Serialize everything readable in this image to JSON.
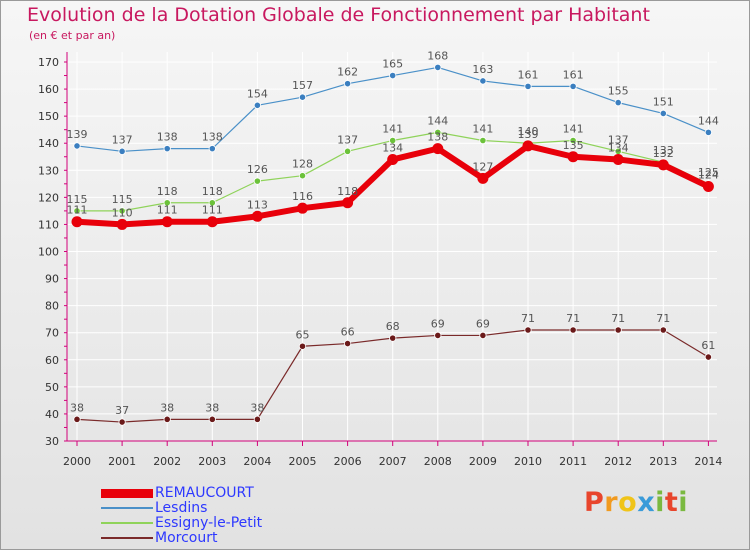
{
  "title": "Evolution de la Dotation Globale de Fonctionnement par Habitant",
  "subtitle": "(en € et par an)",
  "logo": {
    "text": "Proxiti",
    "letters": [
      {
        "ch": "P",
        "color": "#e8452c"
      },
      {
        "ch": "r",
        "color": "#f19a1f"
      },
      {
        "ch": "o",
        "color": "#f0c419"
      },
      {
        "ch": "x",
        "color": "#3a9bd9"
      },
      {
        "ch": "i",
        "color": "#7ab940"
      },
      {
        "ch": "t",
        "color": "#e8452c"
      },
      {
        "ch": "i",
        "color": "#7ab940"
      }
    ]
  },
  "colors": {
    "axis": "#d2007a",
    "grid": "#ffffff",
    "tick_text": "#333333",
    "label_text": "#555555",
    "legend_text": "#2d38ff",
    "title": "#c8185f"
  },
  "chart_data": {
    "type": "line",
    "title": "Evolution de la Dotation Globale de Fonctionnement par Habitant",
    "subtitle": "(en € et par an)",
    "x": [
      "2000",
      "2001",
      "2002",
      "2003",
      "2004",
      "2005",
      "2006",
      "2007",
      "2008",
      "2009",
      "2010",
      "2011",
      "2012",
      "2013",
      "2014"
    ],
    "ylim": [
      30,
      170
    ],
    "yticks": [
      30,
      40,
      50,
      60,
      70,
      80,
      90,
      100,
      110,
      120,
      130,
      140,
      150,
      160,
      170
    ],
    "grid": true,
    "legend_position": "bottom-left",
    "series": [
      {
        "name": "Lesdins",
        "color": "#4a90c8",
        "marker": "#3b7fc0",
        "width": 1.2,
        "values": [
          139,
          137,
          138,
          138,
          154,
          157,
          162,
          165,
          168,
          163,
          161,
          161,
          155,
          151,
          144
        ]
      },
      {
        "name": "Essigny-le-Petit",
        "color": "#8fd35a",
        "marker": "#6cc23a",
        "width": 1.2,
        "values": [
          115,
          115,
          118,
          118,
          126,
          128,
          137,
          141,
          144,
          141,
          140,
          141,
          137,
          133,
          125
        ]
      },
      {
        "name": "Morcourt",
        "color": "#7a2a2a",
        "marker": "#6b1a1a",
        "width": 1.2,
        "values": [
          38,
          37,
          38,
          38,
          38,
          65,
          66,
          68,
          69,
          69,
          71,
          71,
          71,
          71,
          61
        ]
      },
      {
        "name": "REMAUCOURT",
        "color": "#e8000a",
        "marker": "#e8000a",
        "width": 6,
        "values": [
          111,
          110,
          111,
          111,
          113,
          116,
          118,
          134,
          138,
          127,
          139,
          135,
          134,
          132,
          124
        ]
      }
    ],
    "legend_order": [
      "REMAUCOURT",
      "Lesdins",
      "Essigny-le-Petit",
      "Morcourt"
    ]
  }
}
